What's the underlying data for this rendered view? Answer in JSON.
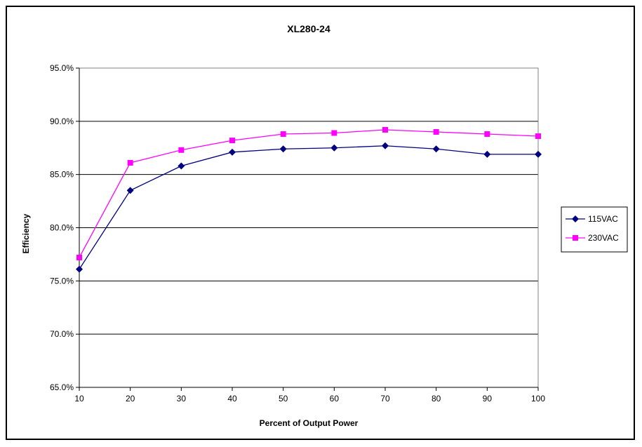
{
  "chart_data": {
    "type": "line",
    "title": "XL280-24",
    "xlabel": "Percent of Output Power",
    "ylabel": "Efficiency",
    "x": [
      10,
      20,
      30,
      40,
      50,
      60,
      70,
      80,
      90,
      100
    ],
    "xticks": [
      "10",
      "20",
      "30",
      "40",
      "50",
      "60",
      "70",
      "80",
      "90",
      "100"
    ],
    "ylim": [
      65,
      95
    ],
    "yticks": [
      "65.0%",
      "70.0%",
      "75.0%",
      "80.0%",
      "85.0%",
      "90.0%",
      "95.0%"
    ],
    "grid": "horizontal",
    "legend_position": "right",
    "series": [
      {
        "name": "115VAC",
        "color": "#000080",
        "marker": "diamond",
        "values": [
          76.1,
          83.5,
          85.8,
          87.1,
          87.4,
          87.5,
          87.7,
          87.4,
          86.9,
          86.9
        ]
      },
      {
        "name": "230VAC",
        "color": "#ff00ff",
        "marker": "square",
        "values": [
          77.2,
          86.1,
          87.3,
          88.2,
          88.8,
          88.9,
          89.2,
          89.0,
          88.8,
          88.6
        ]
      }
    ]
  }
}
